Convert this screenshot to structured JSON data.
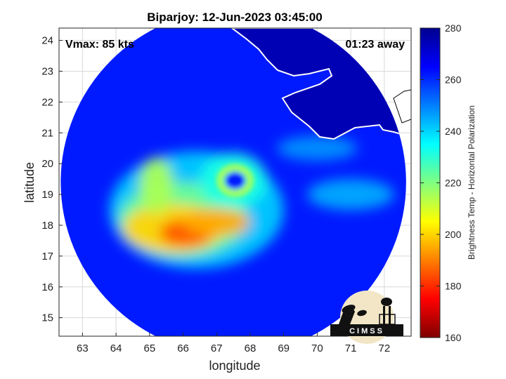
{
  "chart_data": {
    "type": "heatmap",
    "title": "Biparjoy: 12-Jun-2023 03:45:00",
    "xlabel": "longitude",
    "ylabel": "latitude",
    "xlim": [
      62.3,
      72.8
    ],
    "ylim": [
      14.4,
      24.4
    ],
    "x_ticks": [
      "63",
      "64",
      "65",
      "66",
      "67",
      "68",
      "69",
      "70",
      "71",
      "72"
    ],
    "y_ticks": [
      "15",
      "16",
      "17",
      "18",
      "19",
      "20",
      "21",
      "22",
      "23",
      "24"
    ],
    "grid": true,
    "annotations": {
      "vmax": "Vmax: 85 kts",
      "time_offset": "01:23 away"
    },
    "colorbar": {
      "label": "Brightness Temp - Horizontal Polarization",
      "range": [
        160,
        280
      ],
      "ticks": [
        "160",
        "180",
        "200",
        "220",
        "240",
        "260",
        "280"
      ],
      "colormap": [
        "#7f0000",
        "#ff0000",
        "#ffff00",
        "#00ffff",
        "#0000ff",
        "#00008f"
      ]
    },
    "swath": {
      "center_lon": 67.5,
      "center_lat": 19.4,
      "radius_deg": 5.15,
      "background_tb": 262
    },
    "eye": {
      "lon": 67.55,
      "lat": 19.45,
      "tb": 262
    },
    "features": [
      {
        "name": "eyewall",
        "lon": 67.5,
        "lat": 19.45,
        "tb": 232
      },
      {
        "name": "rainband-southwest",
        "lon": 65.7,
        "lat": 17.9,
        "tb": 200
      },
      {
        "name": "rainband-southwest-core",
        "lon": 66.1,
        "lat": 17.75,
        "tb": 185
      },
      {
        "name": "rainband-south",
        "lon": 67.0,
        "lat": 18.1,
        "tb": 195
      },
      {
        "name": "rainband-west",
        "lon": 65.2,
        "lat": 19.3,
        "tb": 215
      },
      {
        "name": "outer-band-east",
        "lon": 71.0,
        "lat": 19.0,
        "tb": 245
      },
      {
        "name": "outer-band-northeast",
        "lon": 70.0,
        "lat": 20.5,
        "tb": 248
      }
    ],
    "land_tb": 275,
    "logo_text": "CIMSS"
  }
}
